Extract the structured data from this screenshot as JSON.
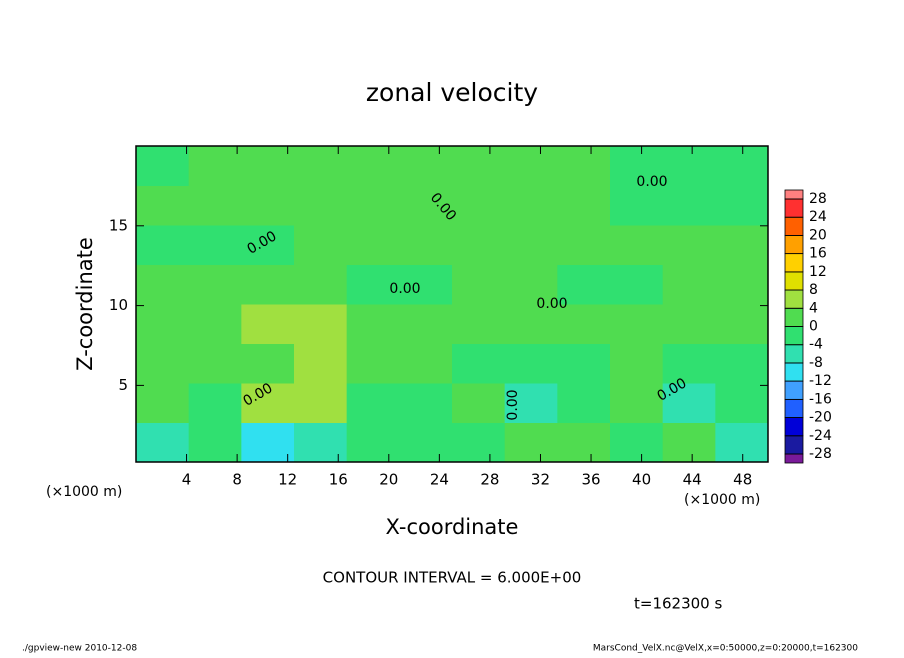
{
  "chart_data": {
    "type": "contour",
    "title": "zonal velocity",
    "x_label": "X-coordinate",
    "y_label": "Z-coordinate",
    "x_unit": "(×1000 m)",
    "xlim": [
      0,
      50
    ],
    "xticks": [
      4,
      8,
      12,
      16,
      20,
      24,
      28,
      32,
      36,
      40,
      44,
      48
    ],
    "ylim": [
      0.2,
      20
    ],
    "yticks": [
      5,
      10,
      15
    ],
    "z": [
      [
        -7,
        -3,
        -9,
        -8,
        -2,
        -4,
        -2,
        1,
        3,
        -3,
        1,
        -7
      ],
      [
        3,
        -2,
        5,
        5,
        -2,
        -3,
        2,
        -5,
        -4,
        2,
        -6,
        -2
      ],
      [
        1,
        3,
        2,
        5,
        3,
        2,
        -2,
        -2,
        -1,
        1,
        -2,
        -3
      ],
      [
        3,
        3,
        4,
        4,
        3,
        3,
        3,
        3,
        3,
        3,
        2,
        2
      ],
      [
        1,
        1,
        1,
        1,
        -1,
        -1,
        1,
        1,
        -1,
        -1,
        1,
        1
      ],
      [
        -1,
        -1,
        -1,
        1,
        1,
        2,
        2,
        2,
        1,
        1,
        1,
        1
      ],
      [
        1,
        1,
        1,
        1,
        1,
        1,
        1,
        1,
        1,
        -1,
        -1,
        -1
      ],
      [
        -1,
        1,
        1,
        1,
        2,
        2,
        2,
        2,
        1,
        -1,
        -1,
        -1
      ]
    ],
    "levels": [
      -28,
      -24,
      -20,
      -16,
      -12,
      -8,
      -4,
      0,
      4,
      8,
      12,
      16,
      20,
      24,
      28
    ],
    "level_colors": [
      "#7a1a9a",
      "#1a1aa0",
      "#0000d8",
      "#2060ff",
      "#40a0ff",
      "#30e0f0",
      "#30e0b0",
      "#30e070",
      "#50dc50",
      "#a0e040",
      "#e0e000",
      "#ffd000",
      "#ffa000",
      "#ff6000",
      "#ff3030",
      "#ff8080"
    ],
    "contour_labels": [
      "0.00",
      "0.00",
      "0.00",
      "0.00",
      "0.00",
      "0.00",
      "0.00",
      "0.00"
    ],
    "contour_interval_label": "CONTOUR INTERVAL = 6.000E+00",
    "time_label": "t=162300 s",
    "footer_left": "./gpview-new  2010-12-08",
    "footer_right": "MarsCond_VelX.nc@VelX,x=0:50000,z=0:20000,t=162300"
  }
}
